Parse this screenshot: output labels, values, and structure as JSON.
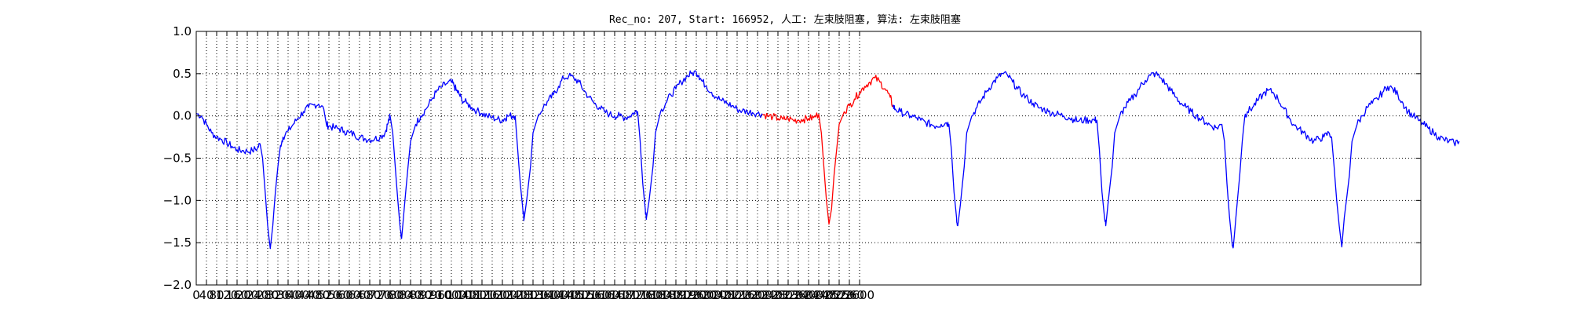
{
  "chart_data": {
    "type": "line",
    "title": "Rec_no: 207, Start: 166952, 人工: 左束肢阻塞, 算法: 左束肢阻塞",
    "xlabel": "",
    "ylabel": "",
    "xlim": [
      0,
      4800
    ],
    "ylim": [
      -2.0,
      1.0
    ],
    "grid": true,
    "yticks": [
      {
        "value": 1.0,
        "label": "1.0"
      },
      {
        "value": 0.5,
        "label": "0.5"
      },
      {
        "value": 0.0,
        "label": "0.0"
      },
      {
        "value": -0.5,
        "label": "−0.5"
      },
      {
        "value": -1.0,
        "label": "−1.0"
      },
      {
        "value": -1.5,
        "label": "−1.5"
      },
      {
        "value": -2.0,
        "label": "−2.0"
      }
    ],
    "xtick_labels": [
      "0",
      "40",
      "80",
      "120",
      "160",
      "200",
      "240",
      "280",
      "320",
      "360",
      "400",
      "440",
      "480",
      "520",
      "560",
      "600",
      "640",
      "680",
      "720",
      "760",
      "800",
      "840",
      "880",
      "920",
      "960",
      "1000",
      "1040",
      "1080",
      "1120",
      "1160",
      "1200",
      "1240",
      "1280",
      "1320",
      "1360",
      "1400",
      "1440",
      "1480",
      "1520",
      "1560",
      "1600",
      "1640",
      "1680",
      "1720",
      "1760",
      "1800",
      "1840",
      "1880",
      "1920",
      "1960",
      "2000",
      "2040",
      "2080",
      "2120",
      "2160",
      "2200",
      "2240",
      "2280",
      "2320",
      "2360",
      "2400",
      "2440",
      "2480",
      "2520",
      "2560",
      "2600"
    ],
    "series_colors": {
      "normal": "#0000ff",
      "highlight": "#ff0000"
    },
    "series": [
      {
        "color": "#0000ff",
        "points": [
          [
            0,
            0.03
          ],
          [
            20,
            0.0
          ],
          [
            40,
            -0.1
          ],
          [
            60,
            -0.2
          ],
          [
            80,
            -0.25
          ],
          [
            100,
            -0.28
          ],
          [
            120,
            -0.32
          ],
          [
            140,
            -0.36
          ],
          [
            160,
            -0.4
          ],
          [
            180,
            -0.41
          ],
          [
            200,
            -0.42
          ],
          [
            220,
            -0.41
          ],
          [
            240,
            -0.38
          ],
          [
            250,
            -0.33
          ],
          [
            260,
            -0.5
          ],
          [
            270,
            -0.9
          ],
          [
            280,
            -1.3
          ],
          [
            290,
            -1.57
          ],
          [
            300,
            -1.3
          ],
          [
            310,
            -0.9
          ],
          [
            320,
            -0.6
          ],
          [
            330,
            -0.35
          ],
          [
            340,
            -0.25
          ],
          [
            360,
            -0.18
          ],
          [
            380,
            -0.1
          ],
          [
            400,
            -0.02
          ],
          [
            420,
            0.05
          ],
          [
            440,
            0.1
          ],
          [
            460,
            0.13
          ],
          [
            480,
            0.14
          ],
          [
            500,
            0.08
          ],
          [
            510,
            -0.1
          ],
          [
            520,
            -0.12
          ],
          [
            540,
            -0.14
          ],
          [
            560,
            -0.15
          ],
          [
            580,
            -0.18
          ],
          [
            600,
            -0.2
          ],
          [
            620,
            -0.22
          ],
          [
            640,
            -0.25
          ],
          [
            660,
            -0.27
          ],
          [
            680,
            -0.28
          ],
          [
            700,
            -0.27
          ],
          [
            720,
            -0.25
          ],
          [
            740,
            -0.2
          ],
          [
            750,
            -0.1
          ],
          [
            760,
            0.0
          ],
          [
            770,
            -0.2
          ],
          [
            780,
            -0.6
          ],
          [
            790,
            -1.0
          ],
          [
            800,
            -1.35
          ],
          [
            805,
            -1.45
          ],
          [
            815,
            -1.1
          ],
          [
            830,
            -0.6
          ],
          [
            840,
            -0.3
          ],
          [
            860,
            -0.1
          ],
          [
            880,
            0.0
          ],
          [
            900,
            0.08
          ],
          [
            920,
            0.18
          ],
          [
            940,
            0.28
          ],
          [
            960,
            0.34
          ],
          [
            980,
            0.38
          ],
          [
            1000,
            0.4
          ],
          [
            1010,
            0.36
          ],
          [
            1020,
            0.3
          ],
          [
            1030,
            0.26
          ],
          [
            1040,
            0.2
          ],
          [
            1060,
            0.15
          ],
          [
            1080,
            0.1
          ],
          [
            1100,
            0.06
          ],
          [
            1120,
            0.03
          ],
          [
            1140,
            0.0
          ],
          [
            1160,
            -0.02
          ],
          [
            1180,
            -0.04
          ],
          [
            1200,
            -0.05
          ],
          [
            1210,
            -0.03
          ],
          [
            1220,
            0.0
          ],
          [
            1240,
            0.0
          ],
          [
            1250,
            0.0
          ],
          [
            1260,
            -0.4
          ],
          [
            1270,
            -0.8
          ],
          [
            1280,
            -1.1
          ],
          [
            1285,
            -1.22
          ],
          [
            1295,
            -1.0
          ],
          [
            1310,
            -0.6
          ],
          [
            1320,
            -0.2
          ],
          [
            1340,
            0.0
          ],
          [
            1360,
            0.1
          ],
          [
            1380,
            0.18
          ],
          [
            1400,
            0.25
          ],
          [
            1420,
            0.35
          ],
          [
            1440,
            0.45
          ],
          [
            1460,
            0.47
          ],
          [
            1480,
            0.45
          ],
          [
            1500,
            0.4
          ],
          [
            1520,
            0.3
          ],
          [
            1540,
            0.22
          ],
          [
            1560,
            0.15
          ],
          [
            1580,
            0.1
          ],
          [
            1600,
            0.05
          ],
          [
            1620,
            0.02
          ],
          [
            1640,
            0.0
          ],
          [
            1660,
            0.0
          ],
          [
            1680,
            -0.02
          ],
          [
            1700,
            0.0
          ],
          [
            1720,
            0.05
          ],
          [
            1730,
            0.05
          ],
          [
            1740,
            -0.3
          ],
          [
            1750,
            -0.8
          ],
          [
            1760,
            -1.1
          ],
          [
            1765,
            -1.2
          ],
          [
            1775,
            -1.0
          ],
          [
            1790,
            -0.6
          ],
          [
            1800,
            -0.2
          ],
          [
            1820,
            0.05
          ],
          [
            1840,
            0.15
          ],
          [
            1860,
            0.25
          ],
          [
            1880,
            0.32
          ],
          [
            1900,
            0.4
          ],
          [
            1920,
            0.46
          ],
          [
            1940,
            0.5
          ],
          [
            1960,
            0.52
          ],
          [
            1970,
            0.48
          ],
          [
            1980,
            0.42
          ],
          [
            2000,
            0.35
          ],
          [
            2020,
            0.28
          ],
          [
            2040,
            0.22
          ],
          [
            2060,
            0.18
          ],
          [
            2080,
            0.15
          ],
          [
            2100,
            0.12
          ],
          [
            2120,
            0.08
          ],
          [
            2140,
            0.06
          ],
          [
            2160,
            0.05
          ],
          [
            2180,
            0.04
          ],
          [
            2200,
            0.03
          ],
          [
            2220,
            0.02
          ]
        ]
      },
      {
        "color": "#ff0000",
        "points": [
          [
            2220,
            0.02
          ],
          [
            2240,
            0.0
          ],
          [
            2260,
            -0.01
          ],
          [
            2280,
            -0.03
          ],
          [
            2300,
            -0.04
          ],
          [
            2320,
            -0.03
          ],
          [
            2340,
            -0.05
          ],
          [
            2360,
            -0.05
          ],
          [
            2380,
            -0.04
          ],
          [
            2400,
            -0.03
          ],
          [
            2420,
            -0.02
          ],
          [
            2440,
            0.02
          ],
          [
            2450,
            -0.2
          ],
          [
            2460,
            -0.6
          ],
          [
            2470,
            -1.0
          ],
          [
            2480,
            -1.28
          ],
          [
            2490,
            -1.1
          ],
          [
            2500,
            -0.7
          ],
          [
            2510,
            -0.4
          ],
          [
            2520,
            -0.1
          ],
          [
            2540,
            0.05
          ],
          [
            2560,
            0.12
          ],
          [
            2580,
            0.2
          ],
          [
            2600,
            0.28
          ],
          [
            2620,
            0.35
          ],
          [
            2640,
            0.4
          ],
          [
            2660,
            0.45
          ],
          [
            2680,
            0.4
          ],
          [
            2700,
            0.32
          ],
          [
            2720,
            0.22
          ],
          [
            2730,
            0.12
          ]
        ]
      },
      {
        "color": "#0000ff",
        "points": [
          [
            2730,
            0.12
          ],
          [
            2740,
            0.08
          ],
          [
            2760,
            0.05
          ],
          [
            2780,
            0.02
          ],
          [
            2800,
            0.0
          ],
          [
            2820,
            -0.02
          ],
          [
            2840,
            -0.05
          ],
          [
            2860,
            -0.08
          ],
          [
            2880,
            -0.1
          ],
          [
            2900,
            -0.12
          ],
          [
            2920,
            -0.1
          ],
          [
            2940,
            -0.08
          ],
          [
            2950,
            -0.1
          ],
          [
            2960,
            -0.4
          ],
          [
            2970,
            -0.9
          ],
          [
            2980,
            -1.2
          ],
          [
            2985,
            -1.3
          ],
          [
            2995,
            -1.05
          ],
          [
            3010,
            -0.6
          ],
          [
            3020,
            -0.2
          ],
          [
            3040,
            0.0
          ],
          [
            3060,
            0.1
          ],
          [
            3080,
            0.2
          ],
          [
            3100,
            0.3
          ],
          [
            3120,
            0.38
          ],
          [
            3140,
            0.45
          ],
          [
            3160,
            0.5
          ],
          [
            3180,
            0.48
          ],
          [
            3200,
            0.4
          ],
          [
            3220,
            0.32
          ],
          [
            3240,
            0.25
          ],
          [
            3260,
            0.2
          ],
          [
            3280,
            0.15
          ],
          [
            3300,
            0.1
          ],
          [
            3320,
            0.08
          ],
          [
            3340,
            0.05
          ],
          [
            3360,
            0.03
          ],
          [
            3380,
            0.02
          ],
          [
            3400,
            0.0
          ],
          [
            3420,
            -0.02
          ],
          [
            3440,
            -0.04
          ],
          [
            3460,
            -0.06
          ],
          [
            3480,
            -0.05
          ],
          [
            3500,
            -0.05
          ],
          [
            3520,
            -0.05
          ],
          [
            3530,
            -0.05
          ],
          [
            3540,
            -0.4
          ],
          [
            3550,
            -0.9
          ],
          [
            3560,
            -1.2
          ],
          [
            3565,
            -1.3
          ],
          [
            3575,
            -1.0
          ],
          [
            3590,
            -0.6
          ],
          [
            3600,
            -0.2
          ],
          [
            3620,
            0.0
          ],
          [
            3640,
            0.1
          ],
          [
            3660,
            0.18
          ],
          [
            3680,
            0.25
          ],
          [
            3700,
            0.35
          ],
          [
            3720,
            0.42
          ],
          [
            3740,
            0.48
          ],
          [
            3760,
            0.5
          ],
          [
            3780,
            0.45
          ],
          [
            3800,
            0.38
          ],
          [
            3820,
            0.3
          ],
          [
            3840,
            0.22
          ],
          [
            3860,
            0.15
          ],
          [
            3880,
            0.1
          ],
          [
            3900,
            0.05
          ],
          [
            3920,
            0.0
          ],
          [
            3940,
            -0.04
          ],
          [
            3960,
            -0.08
          ],
          [
            3980,
            -0.12
          ],
          [
            4000,
            -0.14
          ],
          [
            4020,
            -0.1
          ],
          [
            4030,
            -0.3
          ],
          [
            4040,
            -0.8
          ],
          [
            4050,
            -1.2
          ],
          [
            4060,
            -1.5
          ],
          [
            4065,
            -1.55
          ],
          [
            4075,
            -1.2
          ],
          [
            4090,
            -0.7
          ],
          [
            4100,
            -0.3
          ],
          [
            4110,
            0.0
          ],
          [
            4120,
            0.05
          ],
          [
            4140,
            0.1
          ],
          [
            4160,
            0.18
          ],
          [
            4180,
            0.25
          ],
          [
            4200,
            0.3
          ],
          [
            4220,
            0.28
          ],
          [
            4240,
            0.2
          ],
          [
            4260,
            0.1
          ],
          [
            4280,
            0.0
          ],
          [
            4300,
            -0.1
          ],
          [
            4320,
            -0.15
          ],
          [
            4340,
            -0.2
          ],
          [
            4360,
            -0.25
          ],
          [
            4380,
            -0.3
          ],
          [
            4400,
            -0.27
          ],
          [
            4420,
            -0.25
          ],
          [
            4440,
            -0.2
          ],
          [
            4450,
            -0.25
          ],
          [
            4460,
            -0.6
          ],
          [
            4470,
            -1.0
          ],
          [
            4480,
            -1.3
          ],
          [
            4490,
            -1.55
          ],
          [
            4500,
            -1.2
          ],
          [
            4520,
            -0.7
          ],
          [
            4530,
            -0.3
          ],
          [
            4550,
            -0.1
          ],
          [
            4570,
            0.0
          ],
          [
            4590,
            0.1
          ],
          [
            4610,
            0.15
          ],
          [
            4630,
            0.2
          ],
          [
            4650,
            0.28
          ],
          [
            4670,
            0.35
          ],
          [
            4690,
            0.32
          ],
          [
            4710,
            0.25
          ],
          [
            4730,
            0.15
          ],
          [
            4750,
            0.05
          ],
          [
            4770,
            0.0
          ],
          [
            4790,
            -0.05
          ],
          [
            4810,
            -0.1
          ],
          [
            4830,
            -0.15
          ],
          [
            4850,
            -0.2
          ],
          [
            4870,
            -0.25
          ],
          [
            4890,
            -0.28
          ],
          [
            4910,
            -0.3
          ],
          [
            4930,
            -0.32
          ],
          [
            4950,
            -0.3
          ]
        ]
      }
    ]
  }
}
